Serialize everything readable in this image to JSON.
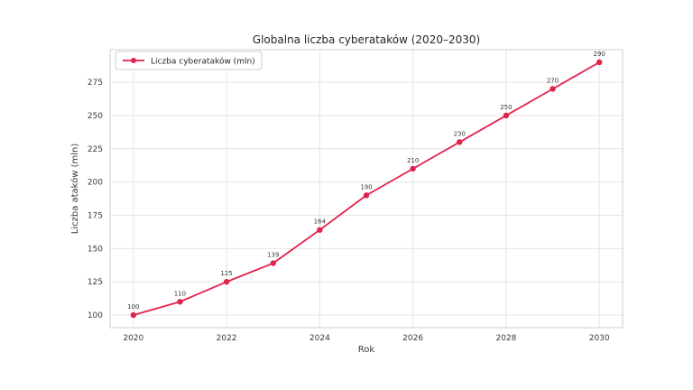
{
  "chart_data": {
    "type": "line",
    "title": "Globalna liczba cyberataków (2020–2030)",
    "xlabel": "Rok",
    "ylabel": "Liczba ataków (mln)",
    "legend": {
      "label": "Liczba cyberataków (mln)",
      "position": "upper left"
    },
    "x": [
      2020,
      2021,
      2022,
      2023,
      2024,
      2025,
      2026,
      2027,
      2028,
      2029,
      2030
    ],
    "series": [
      {
        "name": "Liczba cyberataków (mln)",
        "values": [
          100,
          110,
          125,
          139,
          164,
          190,
          210,
          230,
          250,
          270,
          290
        ],
        "color": "#e2234d",
        "marker": "circle",
        "point_labels": [
          100,
          110,
          125,
          139,
          164,
          190,
          210,
          230,
          250,
          270,
          290
        ]
      }
    ],
    "xticks": [
      2020,
      2022,
      2024,
      2026,
      2028,
      2030
    ],
    "yticks": [
      100,
      125,
      150,
      175,
      200,
      225,
      250,
      275
    ],
    "xlim": [
      2019.5,
      2030.5
    ],
    "ylim": [
      90.5,
      299.5
    ],
    "grid": true,
    "colors": {
      "line": "#e2234d",
      "grid": "#e4e4e4",
      "spine": "#cfcfcf",
      "tick_text": "#3a3a3a",
      "title_text": "#262626",
      "point_label_text": "#3a3a3a",
      "legend_border": "#cccccc",
      "background": "#ffffff"
    }
  }
}
